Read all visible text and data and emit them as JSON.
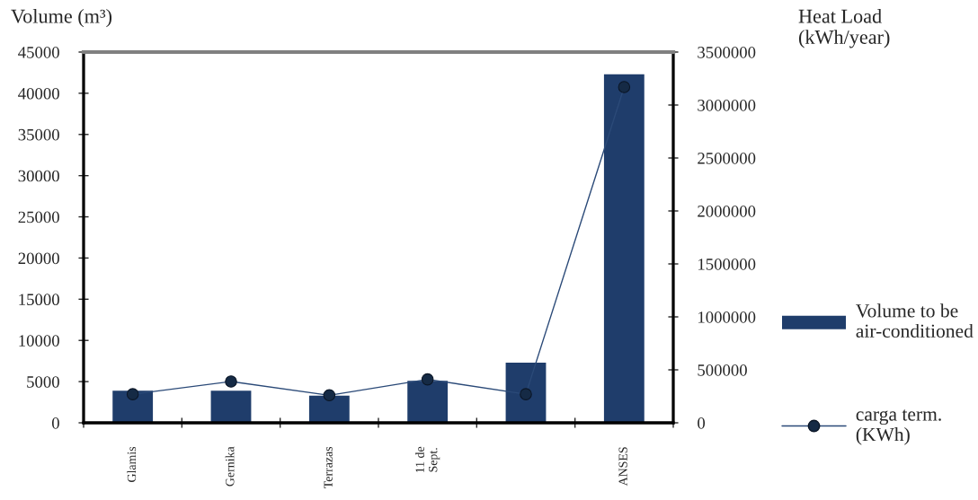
{
  "chart_data": {
    "type": "bar",
    "categories": [
      "Glamis",
      "Gernika",
      "Terrazas",
      "11 de\nSept.",
      null,
      "ANSES"
    ],
    "ylabel": "Volume (m³)",
    "y2label": "Heat Load\n(kWh/year)",
    "ylim": [
      0,
      45000
    ],
    "yticks": [
      0,
      5000,
      10000,
      15000,
      20000,
      25000,
      30000,
      35000,
      40000,
      45000
    ],
    "y2lim": [
      0,
      3500000
    ],
    "y2ticks": [
      0,
      500000,
      1000000,
      1500000,
      2000000,
      2500000,
      3000000,
      3500000
    ],
    "series": [
      {
        "name": "Volume to be\nair-conditioned",
        "color": "#1f3d6b",
        "values": [
          3900,
          3900,
          3300,
          5100,
          7300,
          42300
        ]
      },
      {
        "name": "carga term.\n(KWh)",
        "type": "line",
        "axis": "y2",
        "color": "#2b4a78",
        "marker": "circle",
        "line_style": "solid",
        "values": [
          270000,
          390000,
          260000,
          410000,
          270000,
          3170000
        ]
      }
    ],
    "legend": "right"
  }
}
